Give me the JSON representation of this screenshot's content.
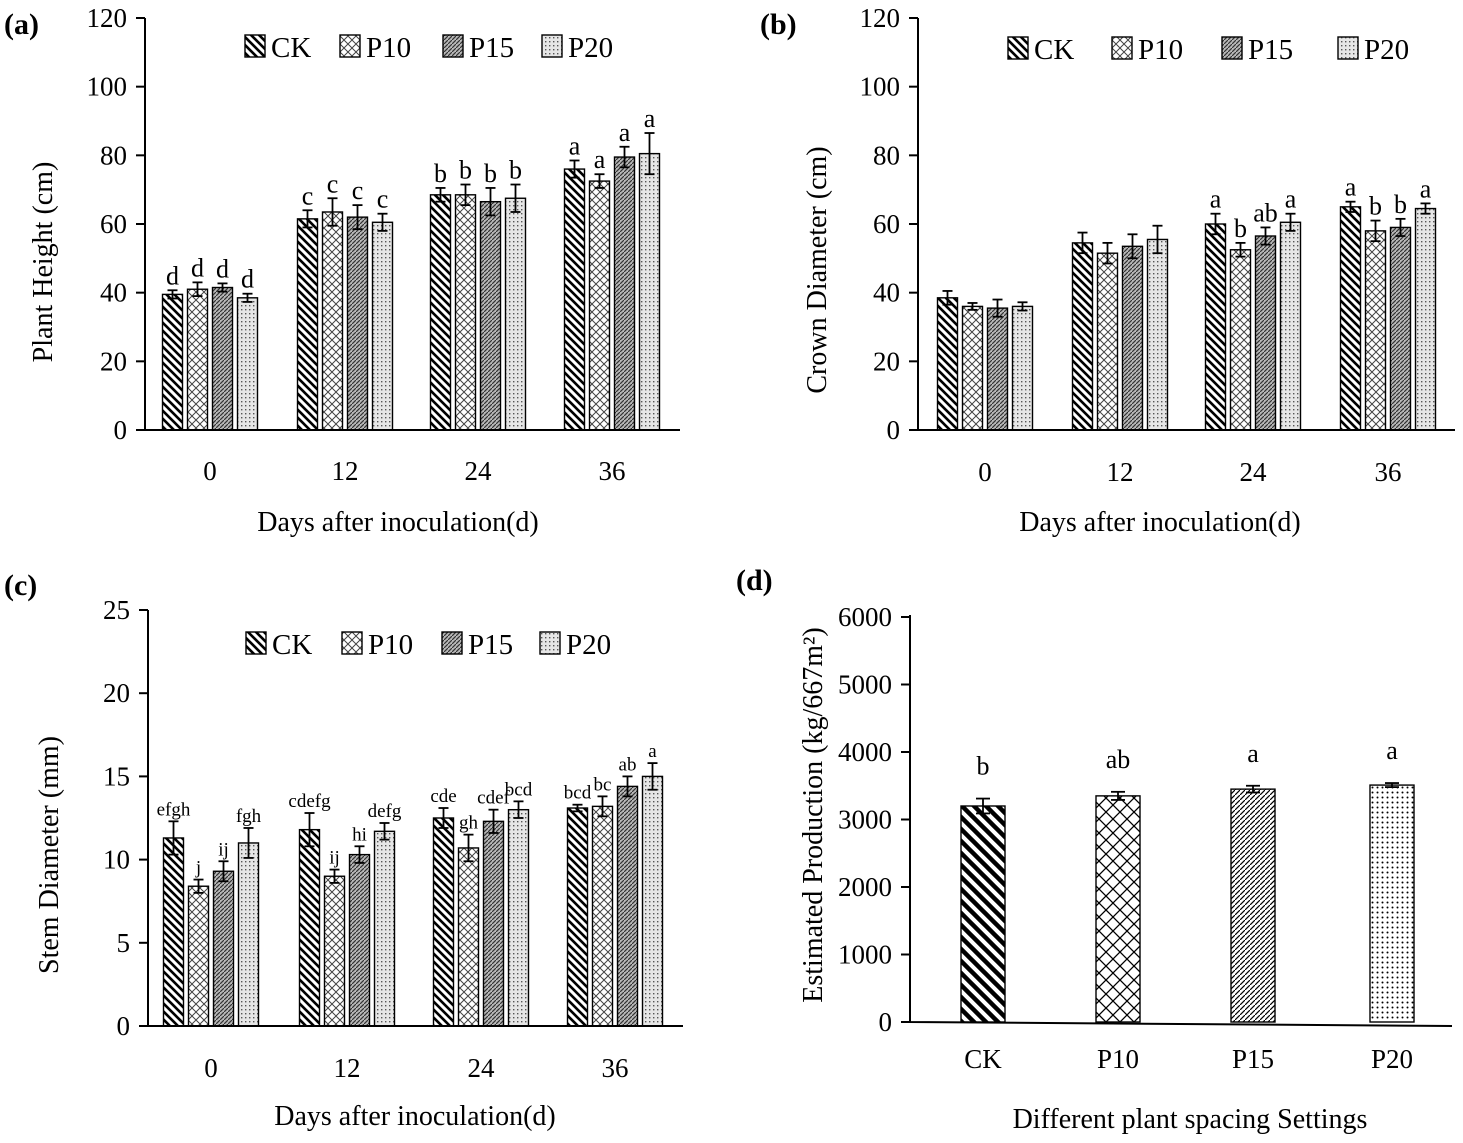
{
  "chart_data": [
    {
      "id": "a",
      "panel_label": "(a)",
      "type": "bar",
      "ylabel": "Plant Height (cm)",
      "xlabel": "Days after inoculation(d)",
      "categories": [
        "0",
        "12",
        "24",
        "36"
      ],
      "ylim": [
        0,
        120
      ],
      "yticks": [
        "0",
        "20",
        "40",
        "60",
        "80",
        "100",
        "120"
      ],
      "legend": [
        "CK",
        "P10",
        "P15",
        "P20"
      ],
      "series": [
        {
          "name": "CK",
          "values": [
            39.5,
            61.5,
            68.5,
            76
          ],
          "errors": [
            1.2,
            2.5,
            2,
            2.5
          ],
          "letters": [
            "d",
            "c",
            "b",
            "a"
          ]
        },
        {
          "name": "P10",
          "values": [
            41,
            63.5,
            68.5,
            72.5
          ],
          "errors": [
            2,
            4,
            3,
            2
          ],
          "letters": [
            "d",
            "c",
            "b",
            "a"
          ]
        },
        {
          "name": "P15",
          "values": [
            41.5,
            62,
            66.5,
            79.5
          ],
          "errors": [
            1.2,
            3.5,
            4,
            3
          ],
          "letters": [
            "d",
            "c",
            "b",
            "a"
          ]
        },
        {
          "name": "P20",
          "values": [
            38.5,
            60.5,
            67.5,
            80.5
          ],
          "errors": [
            1.2,
            2.5,
            4,
            6
          ],
          "letters": [
            "d",
            "c",
            "b",
            "a"
          ]
        }
      ]
    },
    {
      "id": "b",
      "panel_label": "(b)",
      "type": "bar",
      "ylabel": "Crown Diameter (cm)",
      "xlabel": "Days after inoculation(d)",
      "categories": [
        "0",
        "12",
        "24",
        "36"
      ],
      "ylim": [
        0,
        120
      ],
      "yticks": [
        "0",
        "20",
        "40",
        "60",
        "80",
        "100",
        "120"
      ],
      "legend": [
        "CK",
        "P10",
        "P15",
        "P20"
      ],
      "series": [
        {
          "name": "CK",
          "values": [
            38.5,
            54.5,
            60,
            65
          ],
          "errors": [
            2,
            3,
            3,
            1.5
          ],
          "letters": [
            "",
            "",
            "a",
            "a"
          ]
        },
        {
          "name": "P10",
          "values": [
            36,
            51.5,
            52.5,
            58
          ],
          "errors": [
            1,
            3,
            2,
            3
          ],
          "letters": [
            "",
            "",
            "b",
            "b"
          ]
        },
        {
          "name": "P15",
          "values": [
            35.5,
            53.5,
            56.5,
            59
          ],
          "errors": [
            2.5,
            3.5,
            2.5,
            2.5
          ],
          "letters": [
            "",
            "",
            "ab",
            "b"
          ]
        },
        {
          "name": "P20",
          "values": [
            36,
            55.5,
            60.5,
            64.5
          ],
          "errors": [
            1.2,
            4,
            2.5,
            1.5
          ],
          "letters": [
            "",
            "",
            "a",
            "a"
          ]
        }
      ]
    },
    {
      "id": "c",
      "panel_label": "(c)",
      "type": "bar",
      "ylabel": "Stem Diameter (mm)",
      "xlabel": "Days after inoculation(d)",
      "categories": [
        "0",
        "12",
        "24",
        "36"
      ],
      "ylim": [
        0,
        25
      ],
      "yticks": [
        "0",
        "5",
        "10",
        "15",
        "20",
        "25"
      ],
      "legend": [
        "CK",
        "P10",
        "P15",
        "P20"
      ],
      "series": [
        {
          "name": "CK",
          "values": [
            11.3,
            11.8,
            12.5,
            13.1
          ],
          "errors": [
            1,
            1,
            0.6,
            0.2
          ],
          "letters": [
            "efgh",
            "cdefg",
            "cde",
            "bcd"
          ]
        },
        {
          "name": "P10",
          "values": [
            8.4,
            9,
            10.7,
            13.2
          ],
          "errors": [
            0.4,
            0.4,
            0.8,
            0.6
          ],
          "letters": [
            "j",
            "ij",
            "gh",
            "bc"
          ]
        },
        {
          "name": "P15",
          "values": [
            9.3,
            10.3,
            12.3,
            14.4
          ],
          "errors": [
            0.6,
            0.5,
            0.7,
            0.6
          ],
          "letters": [
            "ij",
            "hi",
            "cdef",
            "ab"
          ]
        },
        {
          "name": "P20",
          "values": [
            11,
            11.7,
            13,
            15
          ],
          "errors": [
            0.9,
            0.5,
            0.5,
            0.8
          ],
          "letters": [
            "fgh",
            "defg",
            "bcd",
            "a"
          ]
        }
      ]
    },
    {
      "id": "d",
      "panel_label": "(d)",
      "type": "bar",
      "ylabel": "Estimated Production (kg/667m²)",
      "xlabel": "Different plant spacing Settings",
      "categories": [
        "CK",
        "P10",
        "P15",
        "P20"
      ],
      "ylim": [
        0,
        6000
      ],
      "yticks": [
        "0",
        "1000",
        "2000",
        "3000",
        "4000",
        "5000",
        "6000"
      ],
      "values": [
        3200,
        3350,
        3450,
        3510
      ],
      "errors": [
        110,
        60,
        50,
        30
      ],
      "letters": [
        "b",
        "ab",
        "a",
        "a"
      ]
    }
  ]
}
